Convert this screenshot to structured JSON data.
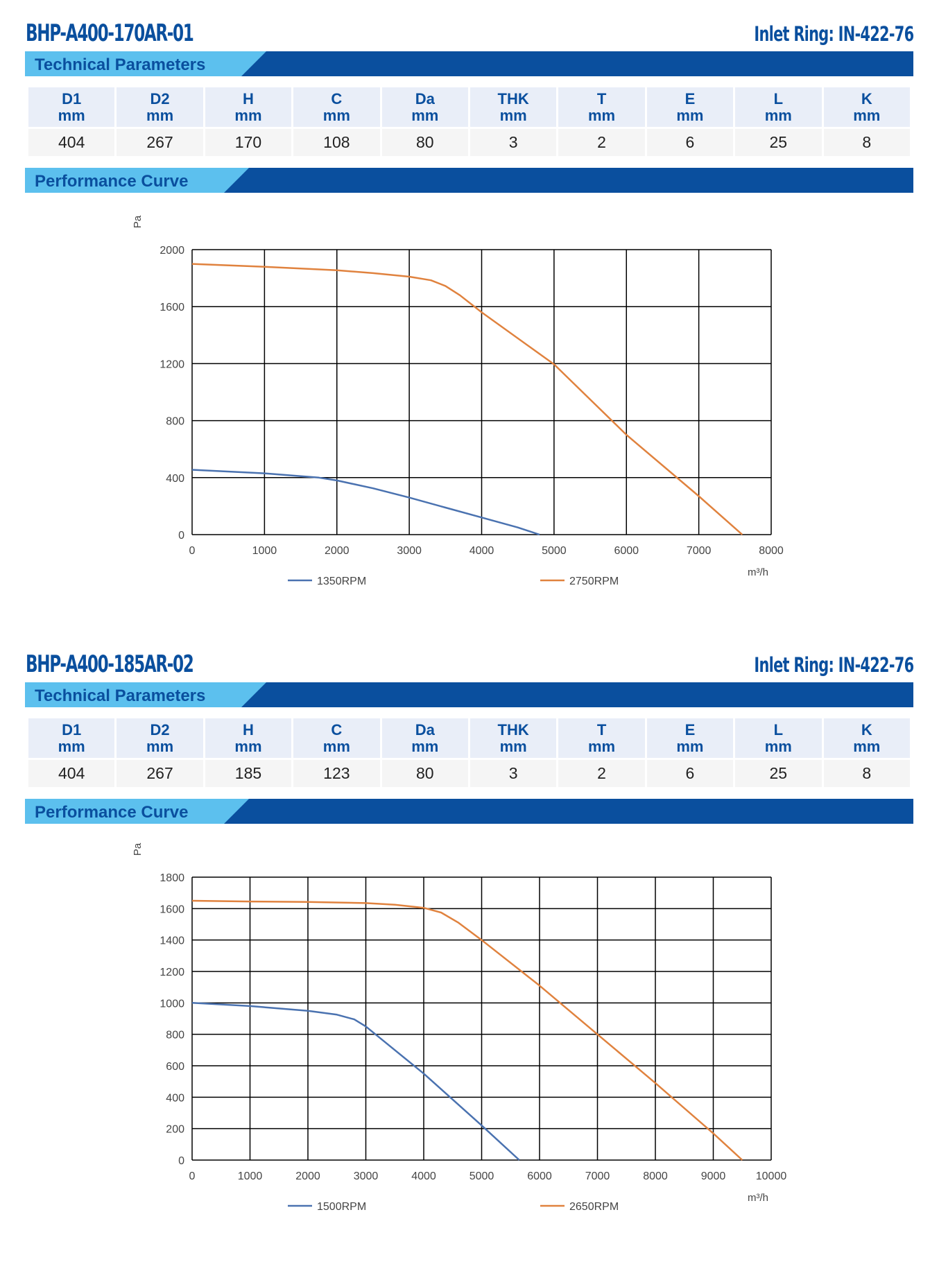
{
  "products": [
    {
      "model": "BHP-A400-170AR-01",
      "inlet_ring": "Inlet Ring: IN-422-76",
      "tech_label": "Technical Parameters",
      "perf_label": "Performance Curve",
      "params": [
        {
          "name": "D1",
          "unit": "mm",
          "value": "404"
        },
        {
          "name": "D2",
          "unit": "mm",
          "value": "267"
        },
        {
          "name": "H",
          "unit": "mm",
          "value": "170"
        },
        {
          "name": "C",
          "unit": "mm",
          "value": "108"
        },
        {
          "name": "Da",
          "unit": "mm",
          "value": "80"
        },
        {
          "name": "THK",
          "unit": "mm",
          "value": "3"
        },
        {
          "name": "T",
          "unit": "mm",
          "value": "2"
        },
        {
          "name": "E",
          "unit": "mm",
          "value": "6"
        },
        {
          "name": "L",
          "unit": "mm",
          "value": "25"
        },
        {
          "name": "K",
          "unit": "mm",
          "value": "8"
        }
      ]
    },
    {
      "model": "BHP-A400-185AR-02",
      "inlet_ring": "Inlet Ring: IN-422-76",
      "tech_label": "Technical Parameters",
      "perf_label": "Performance Curve",
      "params": [
        {
          "name": "D1",
          "unit": "mm",
          "value": "404"
        },
        {
          "name": "D2",
          "unit": "mm",
          "value": "267"
        },
        {
          "name": "H",
          "unit": "mm",
          "value": "185"
        },
        {
          "name": "C",
          "unit": "mm",
          "value": "123"
        },
        {
          "name": "Da",
          "unit": "mm",
          "value": "80"
        },
        {
          "name": "THK",
          "unit": "mm",
          "value": "3"
        },
        {
          "name": "T",
          "unit": "mm",
          "value": "2"
        },
        {
          "name": "E",
          "unit": "mm",
          "value": "6"
        },
        {
          "name": "L",
          "unit": "mm",
          "value": "25"
        },
        {
          "name": "K",
          "unit": "mm",
          "value": "8"
        }
      ]
    }
  ],
  "chart_data": [
    {
      "type": "line",
      "xlabel": "m³/h",
      "ylabel": "Pa",
      "xlim": [
        0,
        8000
      ],
      "ylim": [
        0,
        2000
      ],
      "xticks": [
        0,
        1000,
        2000,
        3000,
        4000,
        5000,
        6000,
        7000,
        8000
      ],
      "yticks": [
        0,
        400,
        800,
        1200,
        1600,
        2000
      ],
      "grid": true,
      "legend": "bottom",
      "series": [
        {
          "name": "1350RPM",
          "color": "#4a72b0",
          "x": [
            0,
            1000,
            1750,
            2000,
            2500,
            3000,
            3500,
            4000,
            4500,
            4800
          ],
          "y": [
            455,
            430,
            400,
            380,
            325,
            260,
            190,
            120,
            50,
            0
          ]
        },
        {
          "name": "2750RPM",
          "color": "#e0823e",
          "x": [
            0,
            1000,
            2000,
            2500,
            3000,
            3300,
            3500,
            3700,
            4000,
            5000,
            6000,
            7000,
            7600
          ],
          "y": [
            1900,
            1880,
            1855,
            1835,
            1810,
            1785,
            1745,
            1680,
            1560,
            1195,
            700,
            270,
            0
          ]
        }
      ]
    },
    {
      "type": "line",
      "xlabel": "m³/h",
      "ylabel": "Pa",
      "xlim": [
        0,
        10000
      ],
      "ylim": [
        0,
        1800
      ],
      "xticks": [
        0,
        1000,
        2000,
        3000,
        4000,
        5000,
        6000,
        7000,
        8000,
        9000,
        10000
      ],
      "yticks": [
        0,
        200,
        400,
        600,
        800,
        1000,
        1200,
        1400,
        1600,
        1800
      ],
      "grid": true,
      "legend": "bottom",
      "series": [
        {
          "name": "1500RPM",
          "color": "#4a72b0",
          "x": [
            0,
            1000,
            2000,
            2500,
            2800,
            3000,
            3300,
            4000,
            5000,
            5650
          ],
          "y": [
            1000,
            980,
            950,
            925,
            895,
            850,
            760,
            550,
            220,
            0
          ]
        },
        {
          "name": "2650RPM",
          "color": "#e0823e",
          "x": [
            0,
            1000,
            2000,
            3000,
            3500,
            4000,
            4300,
            4600,
            5000,
            6000,
            7000,
            8000,
            9000,
            9500
          ],
          "y": [
            1650,
            1645,
            1642,
            1635,
            1625,
            1605,
            1575,
            1510,
            1400,
            1110,
            800,
            490,
            170,
            0
          ]
        }
      ]
    }
  ]
}
